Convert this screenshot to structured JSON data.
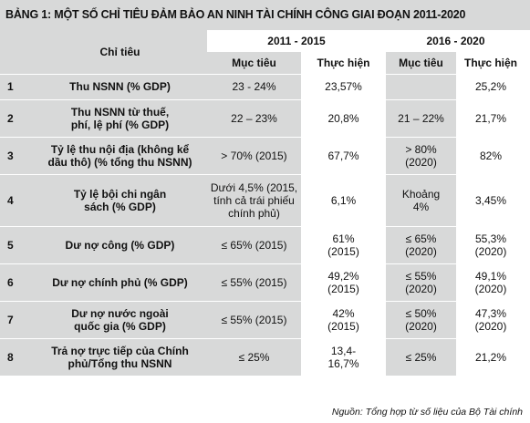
{
  "title": "BẢNG 1: MỘT SỐ CHỈ TIÊU ĐẢM BẢO AN NINH TÀI CHÍNH CÔNG GIAI ĐOẠN 2011-2020",
  "header": {
    "indicator": "Chỉ tiêu",
    "period1": "2011 - 2015",
    "period2": "2016 - 2020",
    "target": "Mục tiêu",
    "actual": "Thực hiện"
  },
  "rows": [
    {
      "no": "1",
      "indicator": [
        "Thu NSNN (% GDP)"
      ],
      "t1": [
        "23 - 24%"
      ],
      "a1": [
        "23,57%"
      ],
      "t2": [
        ""
      ],
      "a2": [
        "25,2%"
      ]
    },
    {
      "no": "2",
      "indicator": [
        "Thu NSNN từ thuế,",
        "phí, lệ phí (% GDP)"
      ],
      "t1": [
        "22 – 23%"
      ],
      "a1": [
        "20,8%"
      ],
      "t2": [
        "21 – 22%"
      ],
      "a2": [
        "21,7%"
      ]
    },
    {
      "no": "3",
      "indicator": [
        "Tỷ lệ thu nội địa (không kể",
        "dầu thô) (% tổng thu NSNN)"
      ],
      "t1": [
        "> 70% (2015)"
      ],
      "a1": [
        "67,7%"
      ],
      "t2": [
        "> 80%",
        "(2020)"
      ],
      "a2": [
        "82%"
      ]
    },
    {
      "no": "4",
      "indicator": [
        "Tỷ lệ bội chi ngân",
        "sách (% GDP)"
      ],
      "t1": [
        "Dưới 4,5% (2015,",
        "tính cả trái phiếu",
        "chính phủ)"
      ],
      "a1": [
        "6,1%"
      ],
      "t2": [
        "Khoảng",
        "4%"
      ],
      "a2": [
        "3,45%"
      ]
    },
    {
      "no": "5",
      "indicator": [
        "Dư nợ công (% GDP)"
      ],
      "t1": [
        "≤ 65% (2015)"
      ],
      "a1": [
        "61%",
        "(2015)"
      ],
      "t2": [
        "≤ 65%",
        "(2020)"
      ],
      "a2": [
        "55,3%",
        "(2020)"
      ]
    },
    {
      "no": "6",
      "indicator": [
        "Dư nợ chính phủ (% GDP)"
      ],
      "t1": [
        "≤ 55% (2015)"
      ],
      "a1": [
        "49,2%",
        "(2015)"
      ],
      "t2": [
        "≤ 55%",
        "(2020)"
      ],
      "a2": [
        "49,1%",
        "(2020)"
      ]
    },
    {
      "no": "7",
      "indicator": [
        "Dư nợ nước ngoài",
        "quốc gia (% GDP)"
      ],
      "t1": [
        "≤ 55% (2015)"
      ],
      "a1": [
        "42%",
        "(2015)"
      ],
      "t2": [
        "≤ 50%",
        "(2020)"
      ],
      "a2": [
        "47,3%",
        "(2020)"
      ]
    },
    {
      "no": "8",
      "indicator": [
        "Trả nợ trực tiếp của Chính",
        "phủ/Tổng thu NSNN"
      ],
      "t1": [
        "≤ 25%"
      ],
      "a1": [
        "13,4-",
        "16,7%"
      ],
      "t2": [
        "≤ 25%"
      ],
      "a2": [
        "21,2%"
      ]
    }
  ],
  "source": "Nguồn: Tổng hợp từ số liệu của Bộ Tài chính"
}
